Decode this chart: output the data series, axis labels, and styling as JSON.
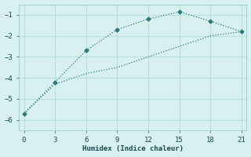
{
  "line1_x": [
    0,
    3,
    6,
    9,
    12,
    15,
    18,
    21
  ],
  "line1_y": [
    -5.7,
    -4.2,
    -2.7,
    -1.7,
    -1.2,
    -0.85,
    -1.3,
    -1.8
  ],
  "line2_x": [
    0,
    3,
    6,
    9,
    12,
    15,
    18,
    21
  ],
  "line2_y": [
    -5.7,
    -4.3,
    -3.8,
    -3.5,
    -3.0,
    -2.5,
    -2.0,
    -1.8
  ],
  "color": "#2a7a7a",
  "xlabel": "Humidex (Indice chaleur)",
  "xlim": [
    -0.5,
    21.5
  ],
  "ylim": [
    -6.5,
    -0.5
  ],
  "xticks": [
    0,
    3,
    6,
    9,
    12,
    15,
    18,
    21
  ],
  "yticks": [
    -6,
    -5,
    -4,
    -3,
    -2,
    -1
  ],
  "background_color": "#d8f0f0",
  "grid_color": "#b8dede"
}
